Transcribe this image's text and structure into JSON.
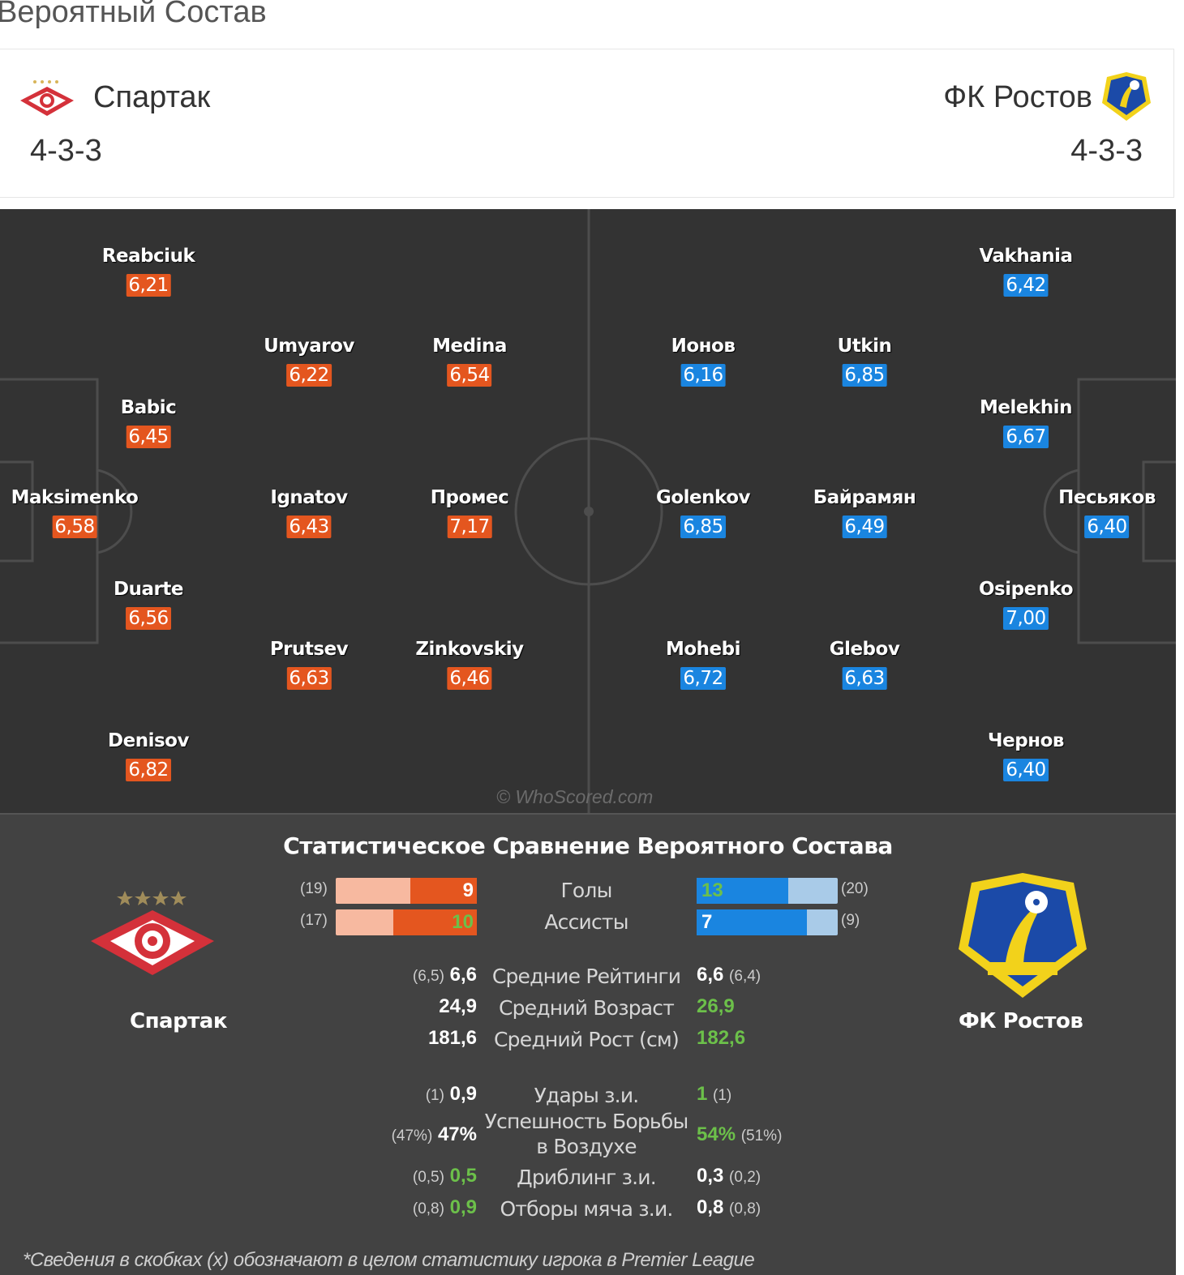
{
  "page_title": "Вероятный Состав",
  "home": {
    "name": "Спартак",
    "formation": "4-3-3",
    "color": "#e4561f",
    "logo_icon": "spartak-logo-icon",
    "players": [
      {
        "name": "Reabciuk",
        "rating": "6,21"
      },
      {
        "name": "Umyarov",
        "rating": "6,22"
      },
      {
        "name": "Medina",
        "rating": "6,54"
      },
      {
        "name": "Babic",
        "rating": "6,45"
      },
      {
        "name": "Maksimenko",
        "rating": "6,58"
      },
      {
        "name": "Ignatov",
        "rating": "6,43"
      },
      {
        "name": "Промес",
        "rating": "7,17"
      },
      {
        "name": "Duarte",
        "rating": "6,56"
      },
      {
        "name": "Prutsev",
        "rating": "6,63"
      },
      {
        "name": "Zinkovskiy",
        "rating": "6,46"
      },
      {
        "name": "Denisov",
        "rating": "6,82"
      }
    ]
  },
  "away": {
    "name": "ФК Ростов",
    "formation": "4-3-3",
    "color": "#1a85e0",
    "logo_icon": "rostov-logo-icon",
    "players": [
      {
        "name": "Vakhania",
        "rating": "6,42"
      },
      {
        "name": "Ионов",
        "rating": "6,16"
      },
      {
        "name": "Utkin",
        "rating": "6,85"
      },
      {
        "name": "Melekhin",
        "rating": "6,67"
      },
      {
        "name": "Golenkov",
        "rating": "6,85"
      },
      {
        "name": "Байрамян",
        "rating": "6,49"
      },
      {
        "name": "Песьяков",
        "rating": "6,40"
      },
      {
        "name": "Osipenko",
        "rating": "7,00"
      },
      {
        "name": "Mohebi",
        "rating": "6,72"
      },
      {
        "name": "Glebov",
        "rating": "6,63"
      },
      {
        "name": "Чернов",
        "rating": "6,40"
      }
    ]
  },
  "watermark": "© WhoScored.com",
  "comparison": {
    "title": "Статистическое Сравнение Вероятного Состава",
    "bars": [
      {
        "label": "Голы",
        "home_value": "9",
        "home_total": "(19)",
        "home_fraction": 0.47,
        "away_value": "13",
        "away_total": "(20)",
        "away_fraction": 0.65
      },
      {
        "label": "Ассисты",
        "home_value": "10",
        "home_total": "(17)",
        "home_fraction": 0.59,
        "away_value": "7",
        "away_total": "(9)",
        "away_fraction": 0.78
      }
    ],
    "rows": [
      {
        "label": "Средние Рейтинги",
        "home_value": "6,6",
        "home_total": "(6,5)",
        "away_value": "6,6",
        "away_total": "(6,4)",
        "home_green": false,
        "away_green": false
      },
      {
        "label": "Средний Возраст",
        "home_value": "24,9",
        "home_total": "",
        "away_value": "26,9",
        "away_total": "",
        "home_green": false,
        "away_green": true
      },
      {
        "label": "Средний Рост (см)",
        "home_value": "181,6",
        "home_total": "",
        "away_value": "182,6",
        "away_total": "",
        "home_green": false,
        "away_green": true
      },
      {
        "label": "Удары з.и.",
        "home_value": "0,9",
        "home_total": "(1)",
        "away_value": "1",
        "away_total": "(1)",
        "home_green": false,
        "away_green": true
      },
      {
        "label": "Успешность Борьбы в Воздухе",
        "home_value": "47%",
        "home_total": "(47%)",
        "away_value": "54%",
        "away_total": "(51%)",
        "home_green": false,
        "away_green": true
      },
      {
        "label": "Дриблинг з.и.",
        "home_value": "0,5",
        "home_total": "(0,5)",
        "away_value": "0,3",
        "away_total": "(0,2)",
        "home_green": true,
        "away_green": false
      },
      {
        "label": "Отборы мяча з.и.",
        "home_value": "0,9",
        "home_total": "(0,8)",
        "away_value": "0,8",
        "away_total": "(0,8)",
        "home_green": true,
        "away_green": false
      }
    ],
    "footnote": "*Сведения в скобках (x) обозначают в целом статистику игрока в Premier League"
  }
}
